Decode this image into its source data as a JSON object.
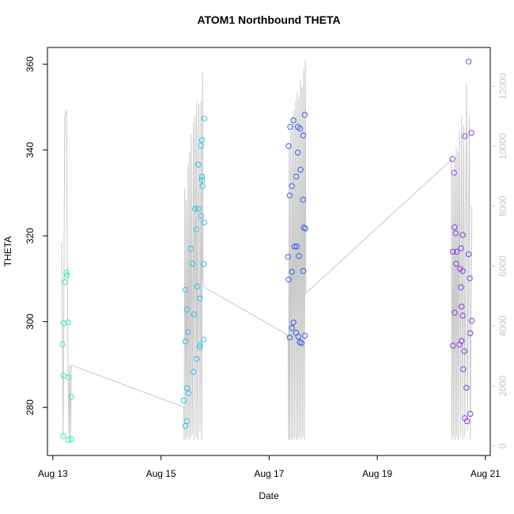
{
  "chart_data": {
    "type": "scatter",
    "title": "ATOM1 Northbound THETA",
    "xlabel": "Date",
    "ylabel": "THETA",
    "xlim": [
      -0.1,
      8.09
    ],
    "xticks": [
      {
        "value": 0,
        "label": "Aug 13"
      },
      {
        "value": 2,
        "label": "Aug 15"
      },
      {
        "value": 4,
        "label": "Aug 17"
      },
      {
        "value": 6,
        "label": "Aug 19"
      },
      {
        "value": 8,
        "label": "Aug 21"
      }
    ],
    "ylim": [
      268.8,
      363.9
    ],
    "yticks": [
      280,
      300,
      320,
      340,
      360
    ],
    "y2lim": [
      -317,
      13298
    ],
    "y2ticks": [
      0,
      2000,
      4000,
      6000,
      8000,
      10000,
      12000
    ],
    "y2color": "#c8c8c8",
    "series": [
      {
        "color": "#3de8b0",
        "x": [
          0.18,
          0.2,
          0.22,
          0.25,
          0.26,
          0.2,
          0.28,
          0.29,
          0.34,
          0.19,
          0.29,
          0.34
        ],
        "values": [
          294.7,
          299.6,
          309.2,
          311.4,
          310.8,
          287.4,
          299.8,
          287.0,
          282.5,
          273.3,
          272.4,
          272.6
        ]
      },
      {
        "color": "#2ec4e6",
        "x": [
          2.42,
          2.45,
          2.48,
          2.51,
          2.48,
          2.45,
          2.5,
          2.48,
          2.45,
          2.55,
          2.58,
          2.6,
          2.61,
          2.63,
          2.66,
          2.66,
          2.67,
          2.69,
          2.69,
          2.72,
          2.72,
          2.72,
          2.74,
          2.74,
          2.76,
          2.76,
          2.76,
          2.77,
          2.79,
          2.79,
          2.8,
          2.8
        ],
        "values": [
          281.6,
          275.7,
          276.8,
          283.3,
          284.5,
          295.4,
          297.6,
          302.8,
          307.4,
          317.0,
          313.5,
          288.3,
          301.7,
          326.3,
          321.5,
          291.3,
          308.2,
          326.3,
          336.6,
          305.4,
          294.5,
          294.0,
          341.0,
          324.6,
          342.3,
          333.8,
          333.0,
          331.6,
          295.8,
          313.4,
          323.1,
          347.3
        ]
      },
      {
        "color": "#3a5fe6",
        "x": [
          4.35,
          4.36,
          4.36,
          4.38,
          4.38,
          4.39,
          4.42,
          4.42,
          4.42,
          4.45,
          4.45,
          4.47,
          4.5,
          4.5,
          4.51,
          4.53,
          4.53,
          4.54,
          4.55,
          4.57,
          4.57,
          4.58,
          4.6,
          4.63,
          4.63,
          4.63,
          4.64,
          4.66,
          4.66,
          4.67
        ],
        "values": [
          315.1,
          340.9,
          309.8,
          329.4,
          296.3,
          345.4,
          331.6,
          311.6,
          298.5,
          299.8,
          346.9,
          317.5,
          297.4,
          333.8,
          317.5,
          345.4,
          339.4,
          296.5,
          315.3,
          345.0,
          295.2,
          335.4,
          295.0,
          343.4,
          311.8,
          328.4,
          321.9,
          296.7,
          348.2,
          321.7
        ]
      },
      {
        "color": "#8a3ee6",
        "x": [
          7.39,
          7.4,
          7.4,
          7.42,
          7.43,
          7.43,
          7.45,
          7.46,
          7.47,
          7.52,
          7.53,
          7.55,
          7.55,
          7.56,
          7.56,
          7.58,
          7.58,
          7.58,
          7.59,
          7.61,
          7.62,
          7.62,
          7.65,
          7.66,
          7.69,
          7.69,
          7.71,
          7.72,
          7.72,
          7.74,
          7.75
        ],
        "values": [
          337.9,
          316.3,
          294.4,
          334.7,
          322.0,
          302.1,
          320.6,
          313.5,
          316.3,
          294.6,
          312.3,
          308.0,
          317.1,
          303.5,
          295.5,
          320.2,
          311.8,
          301.4,
          288.9,
          293.1,
          343.2,
          277.5,
          284.6,
          276.8,
          315.7,
          360.6,
          310.1,
          278.5,
          297.3,
          344.0,
          300.2
        ]
      },
      {
        "type": "line",
        "axis": "y2",
        "color": "#c8c8c8",
        "x": [
          0.16,
          0.19,
          0.22,
          0.25,
          0.28,
          0.3,
          0.31,
          0.33,
          0.34,
          2.42,
          2.43,
          2.44,
          2.46,
          2.47,
          2.49,
          2.5,
          2.52,
          2.53,
          2.55,
          2.56,
          2.58,
          2.6,
          2.61,
          2.63,
          2.65,
          2.66,
          2.68,
          2.7,
          2.72,
          2.74,
          2.75,
          2.77,
          2.78,
          2.8,
          4.35,
          4.36,
          4.37,
          4.38,
          4.4,
          4.41,
          4.43,
          4.44,
          4.46,
          4.47,
          4.49,
          4.5,
          4.52,
          4.53,
          4.55,
          4.56,
          4.58,
          4.59,
          4.61,
          4.62,
          4.64,
          4.65,
          4.67,
          4.68,
          7.37,
          7.38,
          7.4,
          7.41,
          7.43,
          7.44,
          7.46,
          7.47,
          7.49,
          7.5,
          7.52,
          7.54,
          7.56,
          7.58,
          7.6,
          7.62,
          7.65,
          7.67,
          7.7,
          7.72,
          7.75
        ],
        "values": [
          6800,
          300,
          11000,
          11200,
          2500,
          200,
          2700,
          200,
          2700,
          1300,
          200,
          8600,
          200,
          8200,
          300,
          9400,
          200,
          9800,
          300,
          10400,
          400,
          10800,
          200,
          11000,
          300,
          11500,
          200,
          11400,
          500,
          11500,
          200,
          12500,
          5500,
          5300,
          3700,
          200,
          10000,
          200,
          10500,
          200,
          11000,
          200,
          11200,
          300,
          11500,
          200,
          11800,
          200,
          11600,
          300,
          12200,
          200,
          12000,
          300,
          12600,
          200,
          12900,
          5100,
          9550,
          200,
          9000,
          300,
          9500,
          200,
          10000,
          300,
          9800,
          200,
          10500,
          300,
          11000,
          200,
          10700,
          300,
          12100,
          500,
          11000,
          200,
          8000
        ]
      }
    ]
  }
}
